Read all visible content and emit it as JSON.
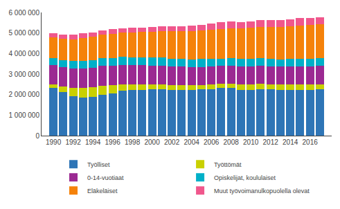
{
  "chart_data": {
    "type": "bar",
    "stacked": true,
    "x": [
      1990,
      1991,
      1992,
      1993,
      1994,
      1995,
      1996,
      1997,
      1998,
      1999,
      2000,
      2001,
      2002,
      2003,
      2004,
      2005,
      2006,
      2007,
      2008,
      2009,
      2010,
      2011,
      2012,
      2013,
      2014,
      2015,
      2016,
      2017
    ],
    "series": [
      {
        "name": "Työlliset",
        "color": "#2e75b6",
        "values": [
          2310000,
          2115000,
          1920000,
          1840000,
          1900000,
          2000000,
          2060000,
          2180000,
          2220000,
          2230000,
          2250000,
          2270000,
          2240000,
          2230000,
          2230000,
          2250000,
          2275000,
          2320000,
          2320000,
          2215000,
          2240000,
          2275000,
          2260000,
          2220000,
          2220000,
          2225000,
          2240000,
          2270000
        ]
      },
      {
        "name": "Työttömät",
        "color": "#c9d000",
        "values": [
          190000,
          270000,
          390000,
          480000,
          450000,
          430000,
          400000,
          320000,
          280000,
          265000,
          245000,
          235000,
          235000,
          235000,
          225000,
          215000,
          205000,
          195000,
          205000,
          275000,
          255000,
          245000,
          245000,
          265000,
          265000,
          275000,
          240000,
          225000
        ]
      },
      {
        "name": "0-14-vuotiaat",
        "color": "#9b2992",
        "values": [
          950000,
          955000,
          960000,
          965000,
          965000,
          965000,
          960000,
          955000,
          945000,
          935000,
          925000,
          915000,
          905000,
          895000,
          885000,
          883000,
          882000,
          881000,
          880000,
          880000,
          880000,
          879000,
          878000,
          877000,
          877000,
          879000,
          893000,
          906000
        ]
      },
      {
        "name": "Opiskelijat, koululaiset",
        "color": "#00b0c8",
        "values": [
          330000,
          340000,
          355000,
          365000,
          365000,
          365000,
          372000,
          372000,
          372000,
          377000,
          377000,
          377000,
          377000,
          377000,
          377000,
          377000,
          372000,
          362000,
          362000,
          362000,
          362000,
          362000,
          362000,
          362000,
          367000,
          372000,
          372000,
          372000
        ]
      },
      {
        "name": "Eläkeläiset",
        "color": "#f5820a",
        "values": [
          1010000,
          1045000,
          1075000,
          1105000,
          1125000,
          1155000,
          1165000,
          1185000,
          1205000,
          1235000,
          1265000,
          1295000,
          1325000,
          1345000,
          1365000,
          1395000,
          1425000,
          1450000,
          1465000,
          1490000,
          1510000,
          1530000,
          1555000,
          1575000,
          1595000,
          1615000,
          1635000,
          1650000
        ]
      },
      {
        "name": "Muut työvoimanulkopuolella olevat",
        "color": "#f0578c",
        "values": [
          200000,
          210000,
          215000,
          220000,
          225000,
          225000,
          225000,
          225000,
          225000,
          225000,
          235000,
          240000,
          245000,
          260000,
          275000,
          285000,
          295000,
          305000,
          315000,
          315000,
          315000,
          325000,
          335000,
          345000,
          355000,
          355000,
          345000,
          335000
        ]
      }
    ],
    "xlim": [
      1988.8,
      2018.2
    ],
    "xticks": [
      1990,
      1992,
      1994,
      1996,
      1998,
      2000,
      2002,
      2004,
      2006,
      2008,
      2010,
      2012,
      2014,
      2016
    ],
    "ylim": [
      0,
      6000000
    ],
    "yticks": [
      0,
      {
        "value": 1000000,
        "label": "1 000 000"
      },
      {
        "value": 2000000,
        "label": "2 000 000"
      },
      {
        "value": 3000000,
        "label": "3 000 000"
      },
      {
        "value": 4000000,
        "label": "4 000 000"
      },
      {
        "value": 5000000,
        "label": "5 000 000"
      },
      {
        "value": 6000000,
        "label": "6 000 000"
      }
    ],
    "grid": false,
    "legend": "bottom"
  }
}
